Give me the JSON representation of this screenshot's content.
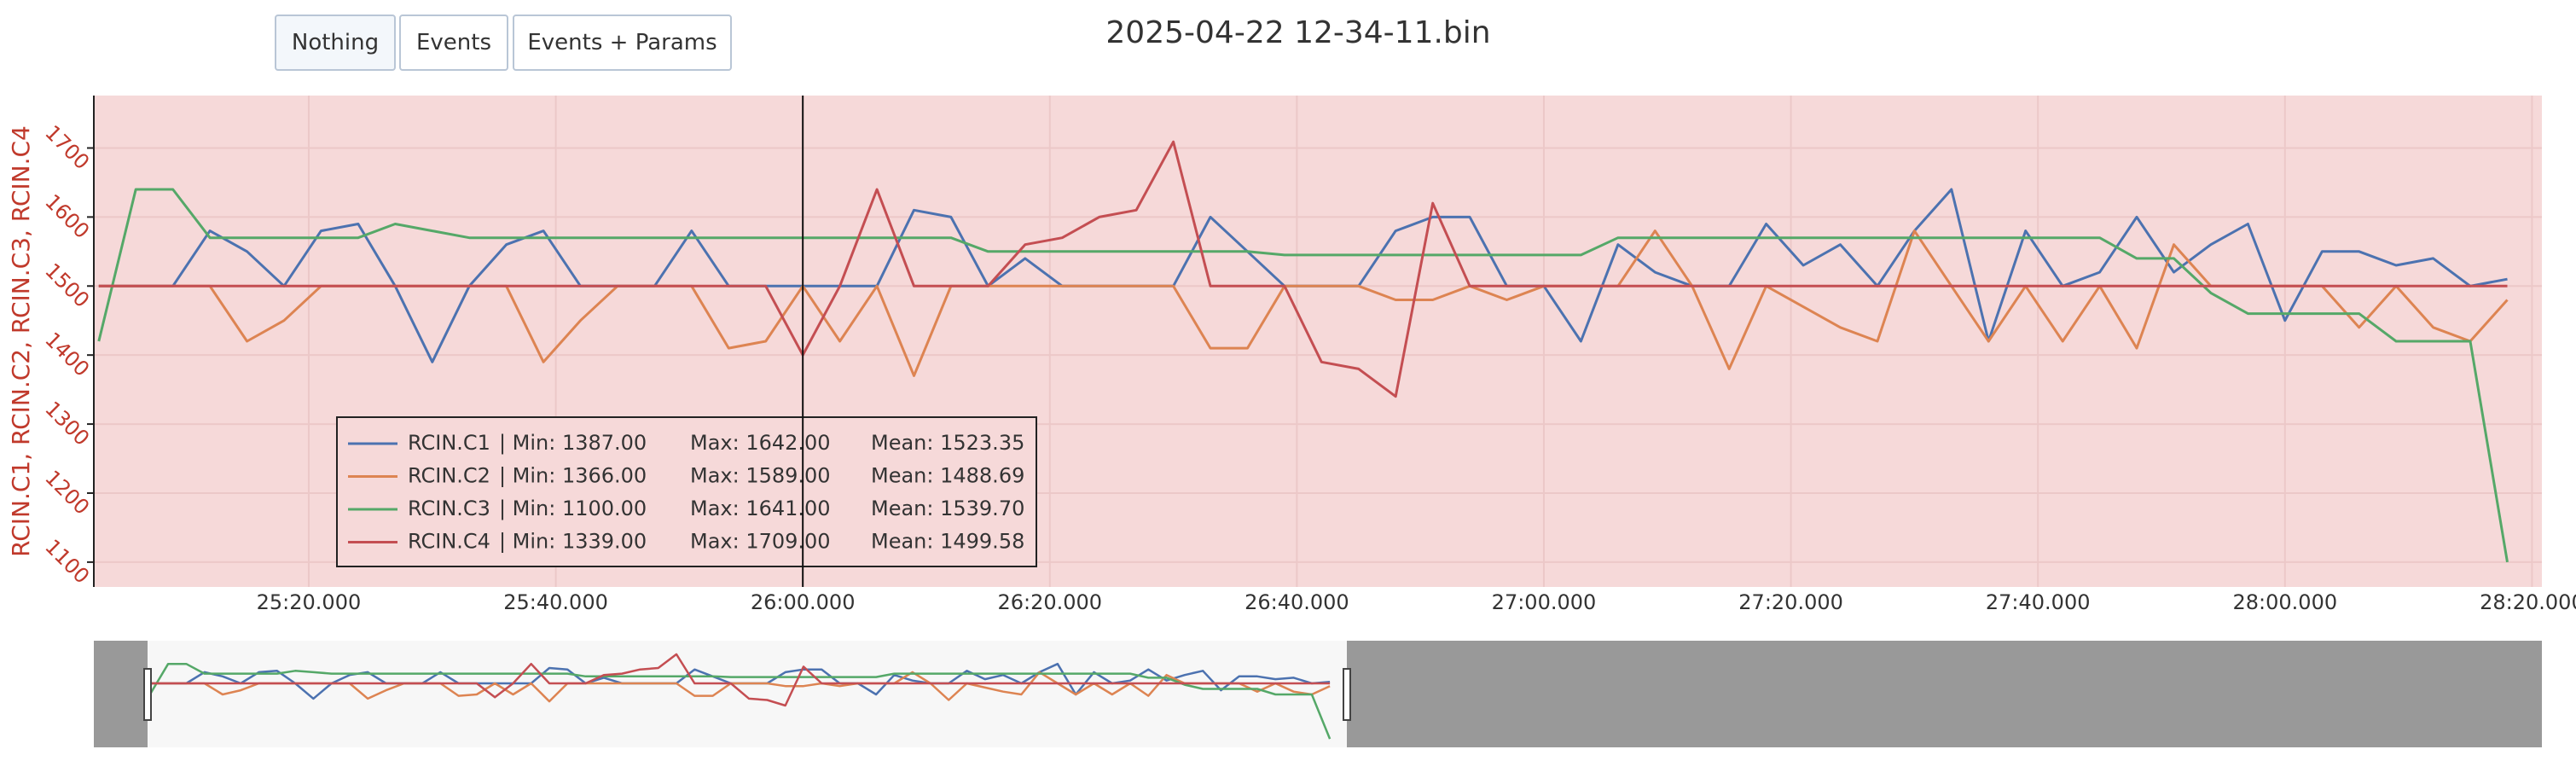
{
  "buttons": [
    "Nothing",
    "Events",
    "Events + Params"
  ],
  "chart_data": {
    "type": "line",
    "title": "2025-04-22 12-34-11.bin",
    "y_label": "RCIN.C1, RCIN.C2, RCIN.C3, RCIN.C4",
    "x": [
      1503,
      1506,
      1509,
      1512,
      1515,
      1518,
      1521,
      1524,
      1527,
      1530,
      1533,
      1536,
      1539,
      1542,
      1545,
      1548,
      1551,
      1554,
      1557,
      1560,
      1563,
      1566,
      1569,
      1572,
      1575,
      1578,
      1581,
      1584,
      1587,
      1590,
      1593,
      1596,
      1599,
      1602,
      1605,
      1608,
      1611,
      1614,
      1617,
      1620,
      1623,
      1626,
      1629,
      1632,
      1635,
      1638,
      1641,
      1644,
      1647,
      1650,
      1653,
      1656,
      1659,
      1662,
      1665,
      1668,
      1671,
      1674,
      1677,
      1680,
      1683,
      1686,
      1689,
      1692,
      1695,
      1698
    ],
    "xlim": [
      1502.6,
      1700.8
    ],
    "xticks": [
      {
        "value": 1520,
        "label": "25:20.000"
      },
      {
        "value": 1540,
        "label": "25:40.000"
      },
      {
        "value": 1560,
        "label": "26:00.000"
      },
      {
        "value": 1580,
        "label": "26:20.000"
      },
      {
        "value": 1600,
        "label": "26:40.000"
      },
      {
        "value": 1620,
        "label": "27:00.000"
      },
      {
        "value": 1640,
        "label": "27:20.000"
      },
      {
        "value": 1660,
        "label": "27:40.000"
      },
      {
        "value": 1680,
        "label": "28:00.000"
      },
      {
        "value": 1700,
        "label": "28:20.000"
      }
    ],
    "ylim": [
      1064,
      1776
    ],
    "yticks": [
      1100,
      1200,
      1300,
      1400,
      1500,
      1600,
      1700
    ],
    "grid": true,
    "cursor_x": 1560,
    "series": [
      {
        "name": "RCIN.C1",
        "color": "#4c72b0",
        "stats": [
          "| Min: 1387.00",
          "Max: 1642.00",
          "Mean: 1523.35"
        ],
        "values": [
          1500,
          1500,
          1500,
          1580,
          1550,
          1500,
          1580,
          1590,
          1500,
          1390,
          1500,
          1560,
          1580,
          1500,
          1500,
          1500,
          1580,
          1500,
          1500,
          1500,
          1500,
          1500,
          1610,
          1600,
          1500,
          1540,
          1500,
          1500,
          1500,
          1500,
          1600,
          1550,
          1500,
          1500,
          1500,
          1580,
          1600,
          1600,
          1500,
          1500,
          1420,
          1560,
          1520,
          1500,
          1500,
          1590,
          1530,
          1560,
          1500,
          1580,
          1640,
          1420,
          1580,
          1500,
          1520,
          1600,
          1520,
          1560,
          1590,
          1450,
          1550,
          1550,
          1530,
          1540,
          1500,
          1510
        ]
      },
      {
        "name": "RCIN.C2",
        "color": "#dd8452",
        "stats": [
          "| Min: 1366.00",
          "Max: 1589.00",
          "Mean: 1488.69"
        ],
        "values": [
          1500,
          1500,
          1500,
          1500,
          1420,
          1450,
          1500,
          1500,
          1500,
          1500,
          1500,
          1500,
          1390,
          1450,
          1500,
          1500,
          1500,
          1410,
          1420,
          1500,
          1420,
          1500,
          1370,
          1500,
          1500,
          1500,
          1500,
          1500,
          1500,
          1500,
          1410,
          1410,
          1500,
          1500,
          1500,
          1480,
          1480,
          1500,
          1480,
          1500,
          1500,
          1500,
          1580,
          1500,
          1380,
          1500,
          1470,
          1440,
          1420,
          1580,
          1500,
          1420,
          1500,
          1420,
          1500,
          1410,
          1560,
          1500,
          1500,
          1500,
          1500,
          1440,
          1500,
          1440,
          1420,
          1480
        ]
      },
      {
        "name": "RCIN.C3",
        "color": "#55a868",
        "stats": [
          "| Min: 1100.00",
          "Max: 1641.00",
          "Mean: 1539.70"
        ],
        "values": [
          1420,
          1640,
          1640,
          1570,
          1570,
          1570,
          1570,
          1570,
          1590,
          1580,
          1570,
          1570,
          1570,
          1570,
          1570,
          1570,
          1570,
          1570,
          1570,
          1570,
          1570,
          1570,
          1570,
          1570,
          1550,
          1550,
          1550,
          1550,
          1550,
          1550,
          1550,
          1550,
          1545,
          1545,
          1545,
          1545,
          1545,
          1545,
          1545,
          1545,
          1545,
          1570,
          1570,
          1570,
          1570,
          1570,
          1570,
          1570,
          1570,
          1570,
          1570,
          1570,
          1570,
          1570,
          1570,
          1540,
          1540,
          1490,
          1460,
          1460,
          1460,
          1460,
          1420,
          1420,
          1420,
          1100
        ]
      },
      {
        "name": "RCIN.C4",
        "color": "#c44e52",
        "stats": [
          "| Min: 1339.00",
          "Max: 1709.00",
          "Mean: 1499.58"
        ],
        "values": [
          1500,
          1500,
          1500,
          1500,
          1500,
          1500,
          1500,
          1500,
          1500,
          1500,
          1500,
          1500,
          1500,
          1500,
          1500,
          1500,
          1500,
          1500,
          1500,
          1400,
          1500,
          1640,
          1500,
          1500,
          1500,
          1560,
          1570,
          1600,
          1610,
          1709,
          1500,
          1500,
          1500,
          1390,
          1380,
          1340,
          1620,
          1500,
          1500,
          1500,
          1500,
          1500,
          1500,
          1500,
          1500,
          1500,
          1500,
          1500,
          1500,
          1500,
          1500,
          1500,
          1500,
          1500,
          1500,
          1500,
          1500,
          1500,
          1500,
          1500,
          1500,
          1500,
          1500,
          1500,
          1500,
          1500
        ]
      }
    ]
  }
}
